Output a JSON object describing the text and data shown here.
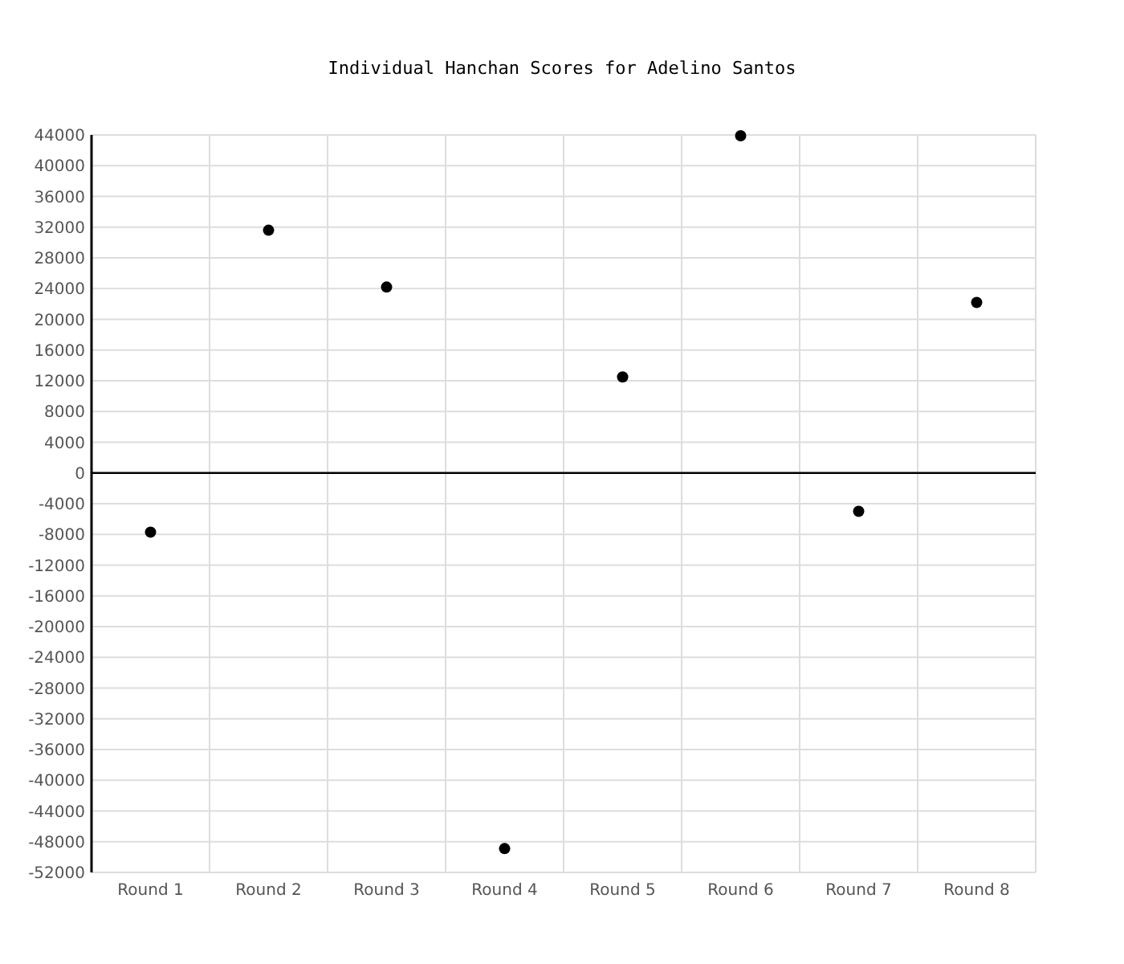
{
  "chart_data": {
    "type": "scatter",
    "title": "Individual Hanchan Scores for Adelino Santos",
    "categories": [
      "Round 1",
      "Round 2",
      "Round 3",
      "Round 4",
      "Round 5",
      "Round 6",
      "Round 7",
      "Round 8"
    ],
    "values": [
      -7700,
      31600,
      24200,
      -48900,
      12500,
      43900,
      -5000,
      22200
    ],
    "color": "#000000",
    "marker": "circle",
    "ylim": [
      -52000,
      44000
    ],
    "yticks": [
      44000,
      40000,
      36000,
      32000,
      28000,
      24000,
      20000,
      16000,
      12000,
      8000,
      4000,
      0,
      -4000,
      -8000,
      -12000,
      -16000,
      -20000,
      -24000,
      -28000,
      -32000,
      -36000,
      -40000,
      -44000,
      -48000,
      -52000
    ],
    "grid": true,
    "ref_lines": [
      {
        "axis": "y",
        "value": 0,
        "color": "#000000"
      }
    ]
  }
}
